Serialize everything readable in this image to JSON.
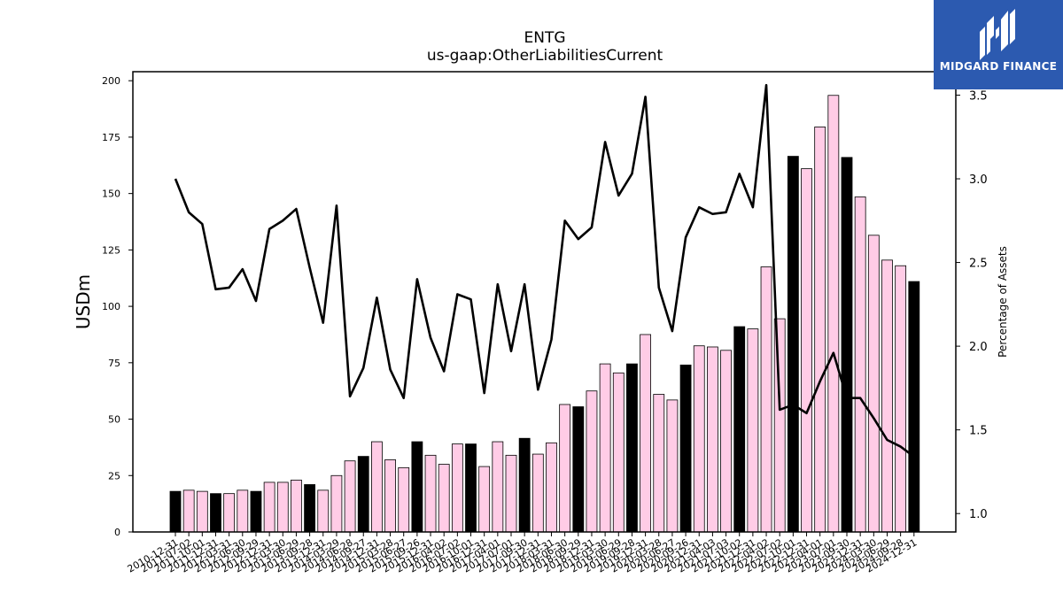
{
  "chart_data": {
    "type": "bar",
    "title": "ENTG",
    "subtitle": "us-gaap:OtherLiabilitiesCurrent",
    "ylabel": "USDm",
    "y2label": "Percentage of Assets",
    "ylim": [
      0,
      204
    ],
    "y2lim": [
      0.89,
      3.64
    ],
    "yticks": [
      0,
      25,
      50,
      75,
      100,
      125,
      150,
      175,
      200
    ],
    "y2ticks": [
      "1.0",
      "1.5",
      "2.0",
      "2.5",
      "3.0",
      "3.5"
    ],
    "colors": {
      "annual": "#000000",
      "quarterly": "#ffcce6",
      "edge": "#000000",
      "line": "#000000"
    },
    "categories": [
      "2010-12-31",
      "2011-07-02",
      "2011-10-01",
      "2011-12-31",
      "2012-03-31",
      "2012-06-30",
      "2012-09-29",
      "2012-12-31",
      "2013-03-30",
      "2013-06-29",
      "2013-09-28",
      "2013-12-31",
      "2014-03-29",
      "2014-06-28",
      "2014-09-27",
      "2014-12-31",
      "2015-03-28",
      "2015-06-27",
      "2015-09-26",
      "2015-12-31",
      "2016-04-02",
      "2016-07-02",
      "2016-10-01",
      "2016-12-31",
      "2017-04-01",
      "2017-07-01",
      "2017-09-30",
      "2017-12-31",
      "2018-03-31",
      "2018-06-30",
      "2018-09-29",
      "2018-12-31",
      "2019-03-30",
      "2019-06-29",
      "2019-09-28",
      "2019-12-31",
      "2020-03-28",
      "2020-06-27",
      "2020-09-26",
      "2020-12-31",
      "2021-04-03",
      "2021-07-03",
      "2021-10-02",
      "2021-12-31",
      "2022-04-02",
      "2022-07-02",
      "2022-10-01",
      "2022-12-31",
      "2023-04-01",
      "2023-07-01",
      "2023-09-30",
      "2023-12-31",
      "2024-03-30",
      "2024-06-29",
      "2024-09-28",
      "2024-12-31"
    ],
    "category_labels": [
      "2010-12-31",
      "2011-07-02",
      "2011-10-01",
      "2011-12-31",
      "2012-03-31",
      "2012-06-30",
      "2012-09-29",
      "2012-12-31",
      "2013-03-30",
      "2013-06-29",
      "2013-09-28",
      "2013-12-31",
      "2014-03-29",
      "2014-06-28",
      "2014-09-27",
      "2014-12-31",
      "2015-03-28",
      "2015-06-27",
      "2015-09-26",
      "2015-12-31",
      "2016-04-02",
      "2016-07-02",
      "2016-10-01",
      "2016-12-31",
      "2017-04-01",
      "2017-07-01",
      "2017-09-30",
      "2017-12-31",
      "2018-03-31",
      "2018-06-30",
      "2018-09-29",
      "2018-12-31",
      "2019-03-30",
      "2019-06-29",
      "2019-09-28",
      "2019-12-31",
      "2020-03-28",
      "2020-06-27",
      "2020-09-26",
      "2020-12-31",
      "2021-04-03",
      "2021-07-03",
      "2021-10-02",
      "2021-12-31",
      "2022-04-02",
      "2022-07-02",
      "2022-10-01",
      "2022-12-31",
      "2023-04-01",
      "2023-07-01",
      "2023-09-30",
      "2023-12-31",
      "2024-03-30",
      "2024-06-29",
      "2024-09-28",
      "2024-12-31"
    ],
    "annual": [
      true,
      false,
      false,
      true,
      false,
      false,
      true,
      false,
      false,
      false,
      true,
      false,
      false,
      false,
      true,
      false,
      false,
      false,
      true,
      false,
      false,
      false,
      true,
      false,
      false,
      false,
      true,
      false,
      false,
      false,
      true,
      false,
      false,
      false,
      true,
      false,
      false,
      false,
      true,
      false,
      false,
      false,
      true,
      false,
      false,
      false,
      true,
      false,
      false,
      false,
      true,
      false,
      false,
      false,
      false,
      true
    ],
    "values": [
      18,
      18.5,
      18,
      17,
      17,
      18.5,
      18,
      22,
      22,
      23,
      21,
      18.5,
      25,
      31.5,
      33.5,
      40,
      32,
      28.5,
      40,
      34,
      30,
      39,
      39,
      29,
      40,
      34,
      41.5,
      34.5,
      39.5,
      56.5,
      55.5,
      62.5,
      74.5,
      70.5,
      74.5,
      87.5,
      61,
      58.5,
      74,
      82.5,
      82,
      80.5,
      91,
      90,
      117.5,
      94.5,
      166.5,
      161,
      179.5,
      193.5,
      166,
      148.5,
      131.5,
      120.5,
      118,
      111
    ],
    "pct_series": [
      3.0,
      2.8,
      2.73,
      2.34,
      2.35,
      2.46,
      2.27,
      2.7,
      2.75,
      2.82,
      2.47,
      2.14,
      2.84,
      1.7,
      1.87,
      2.29,
      1.86,
      1.69,
      2.4,
      2.05,
      1.85,
      2.31,
      2.28,
      1.72,
      2.37,
      1.97,
      2.37,
      1.74,
      2.04,
      2.75,
      2.64,
      2.71,
      3.22,
      2.9,
      3.03,
      3.49,
      2.35,
      2.09,
      2.65,
      2.83,
      2.79,
      2.8,
      3.03,
      2.83,
      3.56,
      1.62,
      1.65,
      1.6,
      1.79,
      1.96,
      1.69,
      1.69,
      1.57,
      1.44,
      1.4,
      1.34
    ]
  },
  "branding": {
    "logo_text": "MIDGARD FINANCE"
  }
}
